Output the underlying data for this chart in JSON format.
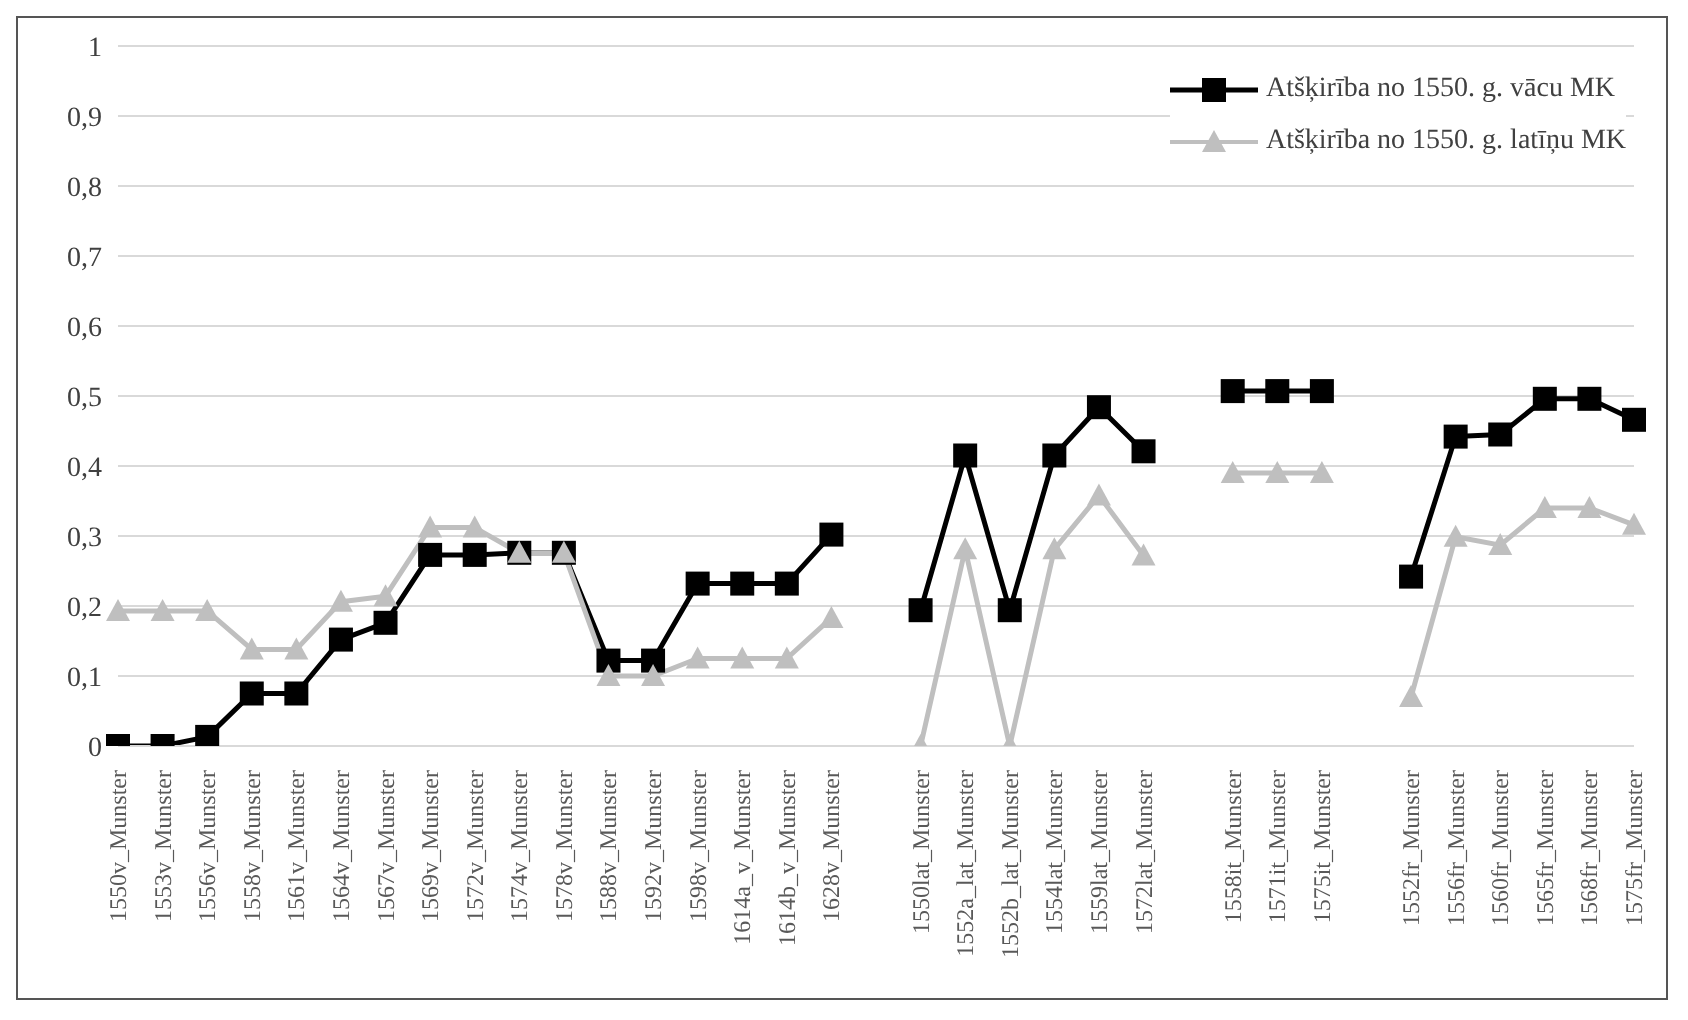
{
  "chart_data": {
    "type": "line",
    "categories": [
      "1550v_Munster",
      "1553v_Munster",
      "1556v_Munster",
      "1558v_Munster",
      "1561v_Munster",
      "1564v_Munster",
      "1567v_Munster",
      "1569v_Munster",
      "1572v_Munster",
      "1574v_Munster",
      "1578v_Munster",
      "1588v_Munster",
      "1592v_Munster",
      "1598v_Munster",
      "1614a_v_Munster",
      "1614b_v_Munster",
      "1628v_Munster",
      null,
      "1550lat_Munster",
      "1552a_lat_Munster",
      "1552b_lat_Munster",
      "1554lat_Munster",
      "1559lat_Munster",
      "1572lat_Munster",
      null,
      "1558it_Munster",
      "1571it_Munster",
      "1575it_Munster",
      null,
      "1552fr_Munster",
      "1556fr_Munster",
      "1560fr_Munster",
      "1565fr_Munster",
      "1568fr_Munster",
      "1575fr_Munster"
    ],
    "series": [
      {
        "name": "Atšķirība no 1550. g. vācu MK",
        "color": "#000000",
        "marker": "square",
        "values": [
          0,
          0,
          0.013,
          0.075,
          0.075,
          0.152,
          0.176,
          0.273,
          0.273,
          0.276,
          0.276,
          0.122,
          0.122,
          0.232,
          0.232,
          0.232,
          0.302,
          null,
          0.194,
          0.415,
          0.194,
          0.415,
          0.484,
          0.421,
          null,
          0.507,
          0.507,
          0.507,
          null,
          0.242,
          0.442,
          0.445,
          0.496,
          0.496,
          0.466
        ]
      },
      {
        "name": "Atšķirība no 1550. g. latīņu MK",
        "color": "#bfbfbf",
        "marker": "triangle",
        "values": [
          0.193,
          0.193,
          0.193,
          0.138,
          0.138,
          0.206,
          0.214,
          0.312,
          0.312,
          0.276,
          0.276,
          0.1,
          0.1,
          0.125,
          0.125,
          0.125,
          0.183,
          null,
          0,
          0.281,
          0,
          0.281,
          0.358,
          0.272,
          null,
          0.39,
          0.39,
          0.39,
          null,
          0.07,
          0.299,
          0.287,
          0.34,
          0.34,
          0.316
        ]
      }
    ],
    "ylim": [
      0,
      1
    ],
    "yticks": [
      0,
      {
        "value": 0.1,
        "label": "0,1"
      },
      {
        "value": 0.2,
        "label": "0,2"
      },
      {
        "value": 0.3,
        "label": "0,3"
      },
      {
        "value": 0.4,
        "label": "0,4"
      },
      {
        "value": 0.5,
        "label": "0,5"
      },
      {
        "value": 0.6,
        "label": "0,6"
      },
      {
        "value": 0.7,
        "label": "0,7"
      },
      {
        "value": 0.8,
        "label": "0,8"
      },
      {
        "value": 0.9,
        "label": "0,9"
      },
      1
    ],
    "grid": "y",
    "legend": "top right",
    "line_style": "solid"
  }
}
